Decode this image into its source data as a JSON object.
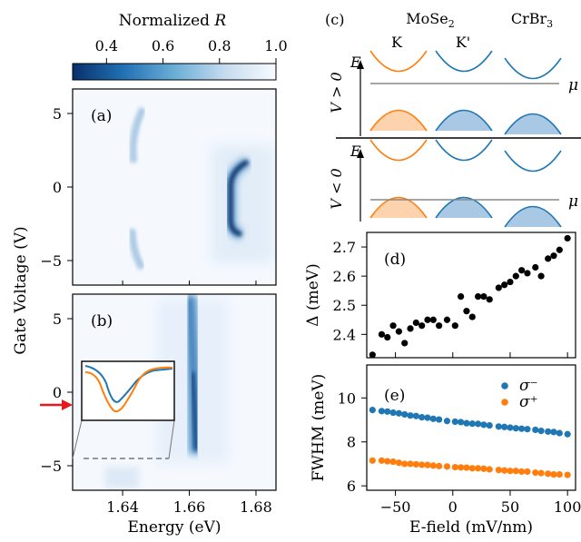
{
  "colorbar": {
    "title": "Normalized ",
    "title_var": "R",
    "ticks": [
      "0.4",
      "0.6",
      "0.8",
      "1.0"
    ],
    "tick_values": [
      0.4,
      0.6,
      0.8,
      1.0
    ],
    "range": [
      0.28,
      1.0
    ],
    "colormap": "Blues_r"
  },
  "panel_a": {
    "label": "(a)",
    "ylabel": "Gate Voltage (V)",
    "yticks": [
      "5",
      "0",
      "−5"
    ],
    "ytick_values": [
      5,
      0,
      -5
    ]
  },
  "panel_b": {
    "label": "(b)",
    "xlabel": "Energy (eV)",
    "xticks": [
      "1.64",
      "1.66",
      "1.68"
    ],
    "xtick_values": [
      1.64,
      1.66,
      1.68
    ],
    "yticks": [
      "5",
      "0",
      "−5"
    ],
    "ytick_values": [
      5,
      0,
      -5
    ],
    "arrow_gate_voltage": -1.2,
    "dashed_cut_voltage": -5
  },
  "panel_c": {
    "label": "(c)",
    "header_mose2": "MoSe",
    "header_mose2_sub": "2",
    "header_crbr3": "CrBr",
    "header_crbr3_sub": "3",
    "valley_k": "K",
    "valley_kprime": "K'",
    "energy_label": "E",
    "mu_label": "μ",
    "row1_label": "V > 0",
    "row2_label": "V < 0",
    "colors": {
      "K": "#ff7f0e",
      "Kprime": "#1f77b4",
      "mu_line": "#888888"
    }
  },
  "chart_data": [
    {
      "panel": "(d)",
      "type": "scatter",
      "xlabel": "",
      "ylabel": "Δ (meV)",
      "xlim": [
        -75,
        107
      ],
      "ylim": [
        2.32,
        2.75
      ],
      "yticks": [
        "2.4",
        "2.5",
        "2.6",
        "2.7"
      ],
      "ytick_values": [
        2.4,
        2.5,
        2.6,
        2.7
      ],
      "color": "#000000",
      "x": [
        -70,
        -62,
        -57,
        -52,
        -47,
        -42,
        -37,
        -32,
        -27,
        -22,
        -17,
        -12,
        -5,
        2,
        7,
        12,
        17,
        22,
        27,
        32,
        40,
        45,
        50,
        55,
        60,
        65,
        72,
        77,
        83,
        88,
        93,
        100
      ],
      "y": [
        2.33,
        2.4,
        2.39,
        2.43,
        2.41,
        2.37,
        2.42,
        2.44,
        2.43,
        2.45,
        2.45,
        2.43,
        2.45,
        2.43,
        2.53,
        2.48,
        2.46,
        2.53,
        2.53,
        2.52,
        2.56,
        2.57,
        2.58,
        2.6,
        2.62,
        2.61,
        2.63,
        2.6,
        2.66,
        2.67,
        2.69,
        2.73
      ]
    },
    {
      "panel": "(e)",
      "type": "scatter",
      "xlabel": "E-field (mV/nm)",
      "ylabel": "FWHM (meV)",
      "xlim": [
        -75,
        107
      ],
      "ylim": [
        5.8,
        11.5
      ],
      "xticks": [
        "−50",
        "0",
        "50",
        "100"
      ],
      "xtick_values": [
        -50,
        0,
        50,
        100
      ],
      "yticks": [
        "6",
        "8",
        "10"
      ],
      "ytick_values": [
        6,
        8,
        10
      ],
      "legend_placement": "top-right",
      "x": [
        -70,
        -62,
        -57,
        -52,
        -47,
        -42,
        -37,
        -32,
        -27,
        -22,
        -17,
        -12,
        -5,
        2,
        7,
        12,
        17,
        22,
        27,
        32,
        40,
        45,
        50,
        55,
        60,
        65,
        72,
        77,
        83,
        88,
        93,
        100
      ],
      "series": [
        {
          "name": "σ⁻",
          "color": "#1f77b4",
          "values": [
            9.45,
            9.4,
            9.38,
            9.33,
            9.3,
            9.25,
            9.2,
            9.18,
            9.12,
            9.1,
            9.05,
            9.02,
            8.95,
            8.92,
            8.9,
            8.85,
            8.83,
            8.82,
            8.78,
            8.75,
            8.7,
            8.68,
            8.65,
            8.62,
            8.6,
            8.58,
            8.55,
            8.5,
            8.47,
            8.45,
            8.4,
            8.35
          ]
        },
        {
          "name": "σ⁺",
          "color": "#ff7f0e",
          "values": [
            7.15,
            7.15,
            7.12,
            7.1,
            7.05,
            7.0,
            7.0,
            6.98,
            6.96,
            6.95,
            6.92,
            6.9,
            6.88,
            6.85,
            6.84,
            6.83,
            6.8,
            6.8,
            6.78,
            6.75,
            6.72,
            6.7,
            6.68,
            6.68,
            6.65,
            6.65,
            6.6,
            6.58,
            6.55,
            6.52,
            6.52,
            6.5
          ]
        }
      ]
    }
  ]
}
